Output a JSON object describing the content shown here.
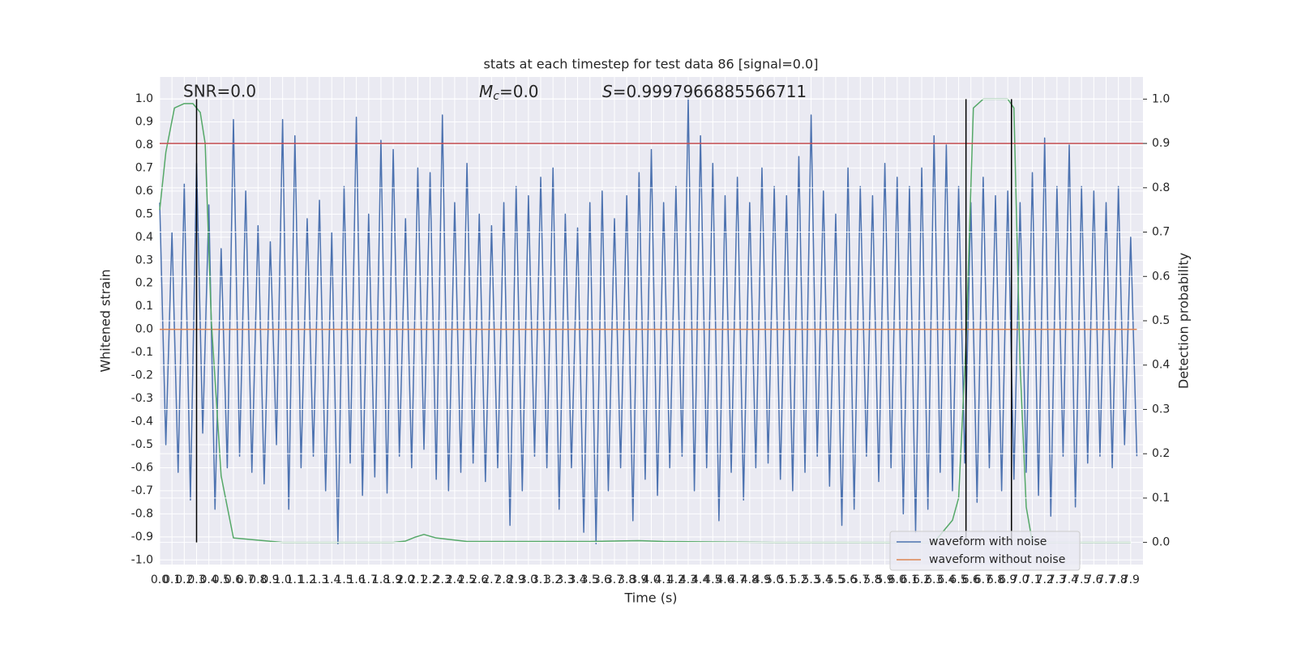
{
  "chart_data": {
    "type": "line",
    "title": "stats at each timestep for test data 86 [signal=0.0]",
    "annotations": [
      {
        "text": "SNR=0.0"
      },
      {
        "symbol": "M",
        "subscript": "c",
        "text": "=0.0"
      },
      {
        "symbol": "S",
        "text": "=0.9997966885566711"
      }
    ],
    "x_label": "Time (s)",
    "y_label": "Whitened strain",
    "y2_label": "Detection probability",
    "xlim": [
      0,
      8.0
    ],
    "ylim": [
      -1.02,
      1.095
    ],
    "y2lim": [
      -0.05,
      1.05
    ],
    "grid": true,
    "legend": "lower right",
    "xticks": [
      {
        "value": 0,
        "label": "0.0"
      },
      0.1,
      0.2,
      0.3,
      0.4,
      0.5,
      0.6,
      0.7,
      0.8,
      0.9,
      {
        "value": 1,
        "label": "1.0"
      },
      1.1,
      1.2,
      1.3,
      1.4,
      1.5,
      1.6,
      1.7,
      1.8,
      1.9,
      {
        "value": 2,
        "label": "2.0"
      },
      2.1,
      2.2,
      2.3,
      2.4,
      2.5,
      2.6,
      2.7,
      2.8,
      2.9,
      {
        "value": 3,
        "label": "3.0"
      },
      3.1,
      3.2,
      3.3,
      3.4,
      3.5,
      3.6,
      3.7,
      3.8,
      3.9,
      {
        "value": 4,
        "label": "4.0"
      },
      4.1,
      4.2,
      4.3,
      4.4,
      4.5,
      4.6,
      4.7,
      4.8,
      4.9,
      {
        "value": 5,
        "label": "5.0"
      },
      5.1,
      5.2,
      5.3,
      5.4,
      5.5,
      5.6,
      5.7,
      5.8,
      5.9,
      {
        "value": 6,
        "label": "6.0"
      },
      6.1,
      6.2,
      6.3,
      6.4,
      6.5,
      6.6,
      6.7,
      6.8,
      6.9,
      {
        "value": 7,
        "label": "7.0"
      },
      7.1,
      7.2,
      7.3,
      7.4,
      7.5,
      7.6,
      7.7,
      7.8,
      7.9
    ],
    "yticks": [
      {
        "value": -1,
        "label": "-1.0"
      },
      -0.9,
      -0.8,
      -0.7,
      -0.6,
      -0.5,
      -0.4,
      -0.3,
      -0.2,
      -0.1,
      {
        "value": 0,
        "label": "0.0"
      },
      0.1,
      0.2,
      0.3,
      0.4,
      0.5,
      0.6,
      0.7,
      0.8,
      0.9,
      {
        "value": 1,
        "label": "1.0"
      }
    ],
    "y2ticks": [
      {
        "value": 0,
        "label": "0.0"
      },
      0.1,
      0.2,
      0.3,
      0.4,
      0.5,
      0.6,
      0.7,
      0.8,
      0.9,
      {
        "value": 1,
        "label": "1.0"
      }
    ],
    "x": [
      0,
      0.05,
      0.1,
      0.15,
      0.2,
      0.25,
      0.3,
      0.35,
      0.4,
      0.45,
      0.5,
      0.55,
      0.6,
      0.65,
      0.7,
      0.75,
      0.8,
      0.85,
      0.9,
      0.95,
      1,
      1.05,
      1.1,
      1.15,
      1.2,
      1.25,
      1.3,
      1.35,
      1.4,
      1.45,
      1.5,
      1.55,
      1.6,
      1.65,
      1.7,
      1.75,
      1.8,
      1.85,
      1.9,
      1.95,
      2,
      2.05,
      2.1,
      2.15,
      2.2,
      2.25,
      2.3,
      2.35,
      2.4,
      2.45,
      2.5,
      2.55,
      2.6,
      2.65,
      2.7,
      2.75,
      2.8,
      2.85,
      2.9,
      2.95,
      3,
      3.05,
      3.1,
      3.15,
      3.2,
      3.25,
      3.3,
      3.35,
      3.4,
      3.45,
      3.5,
      3.55,
      3.6,
      3.65,
      3.7,
      3.75,
      3.8,
      3.85,
      3.9,
      3.95,
      4,
      4.05,
      4.1,
      4.15,
      4.2,
      4.25,
      4.3,
      4.35,
      4.4,
      4.45,
      4.5,
      4.55,
      4.6,
      4.65,
      4.7,
      4.75,
      4.8,
      4.85,
      4.9,
      4.95,
      5,
      5.05,
      5.1,
      5.15,
      5.2,
      5.25,
      5.3,
      5.35,
      5.4,
      5.45,
      5.5,
      5.55,
      5.6,
      5.65,
      5.7,
      5.75,
      5.8,
      5.85,
      5.9,
      5.95,
      6,
      6.05,
      6.1,
      6.15,
      6.2,
      6.25,
      6.3,
      6.35,
      6.4,
      6.45,
      6.5,
      6.55,
      6.6,
      6.65,
      6.7,
      6.75,
      6.8,
      6.85,
      6.9,
      6.95,
      7,
      7.05,
      7.1,
      7.15,
      7.2,
      7.25,
      7.3,
      7.35,
      7.4,
      7.45,
      7.5,
      7.55,
      7.6,
      7.65,
      7.7,
      7.75,
      7.8,
      7.85,
      7.9,
      7.95
    ],
    "series": [
      {
        "name": "waveform with noise",
        "color": "#4c72b0",
        "values": [
          0.55,
          -0.5,
          0.42,
          -0.62,
          0.63,
          -0.74,
          0.72,
          -0.45,
          0.54,
          -0.78,
          0.35,
          -0.6,
          0.91,
          -0.55,
          0.6,
          -0.62,
          0.45,
          -0.67,
          0.38,
          -0.5,
          0.91,
          -0.78,
          0.84,
          -0.6,
          0.48,
          -0.55,
          0.56,
          -0.7,
          0.42,
          -0.93,
          0.62,
          -0.58,
          0.92,
          -0.72,
          0.5,
          -0.64,
          0.82,
          -0.71,
          0.78,
          -0.55,
          0.48,
          -0.6,
          0.7,
          -0.52,
          0.68,
          -0.65,
          0.93,
          -0.7,
          0.55,
          -0.62,
          0.72,
          -0.58,
          0.5,
          -0.66,
          0.45,
          -0.6,
          0.55,
          -0.85,
          0.62,
          -0.7,
          0.58,
          -0.55,
          0.66,
          -0.6,
          0.7,
          -0.78,
          0.5,
          -0.6,
          0.44,
          -0.88,
          0.55,
          -0.93,
          0.6,
          -0.7,
          0.48,
          -0.6,
          0.58,
          -0.83,
          0.68,
          -0.65,
          0.78,
          -0.72,
          0.55,
          -0.6,
          0.62,
          -0.55,
          1.0,
          -0.7,
          0.84,
          -0.6,
          0.72,
          -0.83,
          0.58,
          -0.62,
          0.66,
          -0.74,
          0.55,
          -0.6,
          0.7,
          -0.58,
          0.62,
          -0.65,
          0.58,
          -0.7,
          0.75,
          -0.62,
          0.93,
          -0.55,
          0.6,
          -0.68,
          0.5,
          -0.85,
          0.7,
          -0.78,
          0.62,
          -0.55,
          0.58,
          -0.66,
          0.72,
          -0.6,
          0.66,
          -0.8,
          0.62,
          -0.88,
          0.7,
          -0.78,
          0.84,
          -0.62,
          0.8,
          -0.7,
          0.62,
          -0.58,
          0.55,
          -0.75,
          0.66,
          -0.6,
          0.58,
          -0.7,
          0.6,
          -0.65,
          0.55,
          -0.62,
          0.68,
          -0.72,
          0.83,
          -0.81,
          0.62,
          -0.55,
          0.8,
          -0.77,
          0.62,
          -0.58,
          0.6,
          -0.55,
          0.55,
          -0.6,
          0.62,
          -0.5,
          0.4,
          -0.55
        ]
      },
      {
        "name": "waveform without noise",
        "color": "#dd8452",
        "x": [
          0,
          7.95
        ],
        "values": [
          0,
          0
        ]
      },
      {
        "color": "#55a868",
        "axis": "y2",
        "x": [
          0,
          0.05,
          0.12,
          0.2,
          0.27,
          0.33,
          0.37,
          0.42,
          0.5,
          0.6,
          1.0,
          1.5,
          1.9,
          2.0,
          2.08,
          2.15,
          2.25,
          2.5,
          3.0,
          3.5,
          3.9,
          4.1,
          5.0,
          6.0,
          6.3,
          6.45,
          6.5,
          6.56,
          6.62,
          6.7,
          6.9,
          6.95,
          7.0,
          7.05,
          7.1,
          7.9
        ],
        "values": [
          0.75,
          0.88,
          0.98,
          0.99,
          0.99,
          0.97,
          0.9,
          0.5,
          0.15,
          0.01,
          0.0,
          0.0,
          0.0,
          0.003,
          0.012,
          0.018,
          0.01,
          0.002,
          0.002,
          0.002,
          0.004,
          0.002,
          0.0,
          0.0,
          0.0,
          0.05,
          0.1,
          0.45,
          0.98,
          1.0,
          1.0,
          0.98,
          0.4,
          0.08,
          0.0,
          0.0
        ]
      }
    ],
    "threshold": {
      "y2": 0.9,
      "color": "#c44e52"
    },
    "vlines": {
      "x": [
        0.3,
        6.56,
        6.93
      ],
      "y2range": [
        0,
        1
      ],
      "color": "#000000"
    }
  }
}
